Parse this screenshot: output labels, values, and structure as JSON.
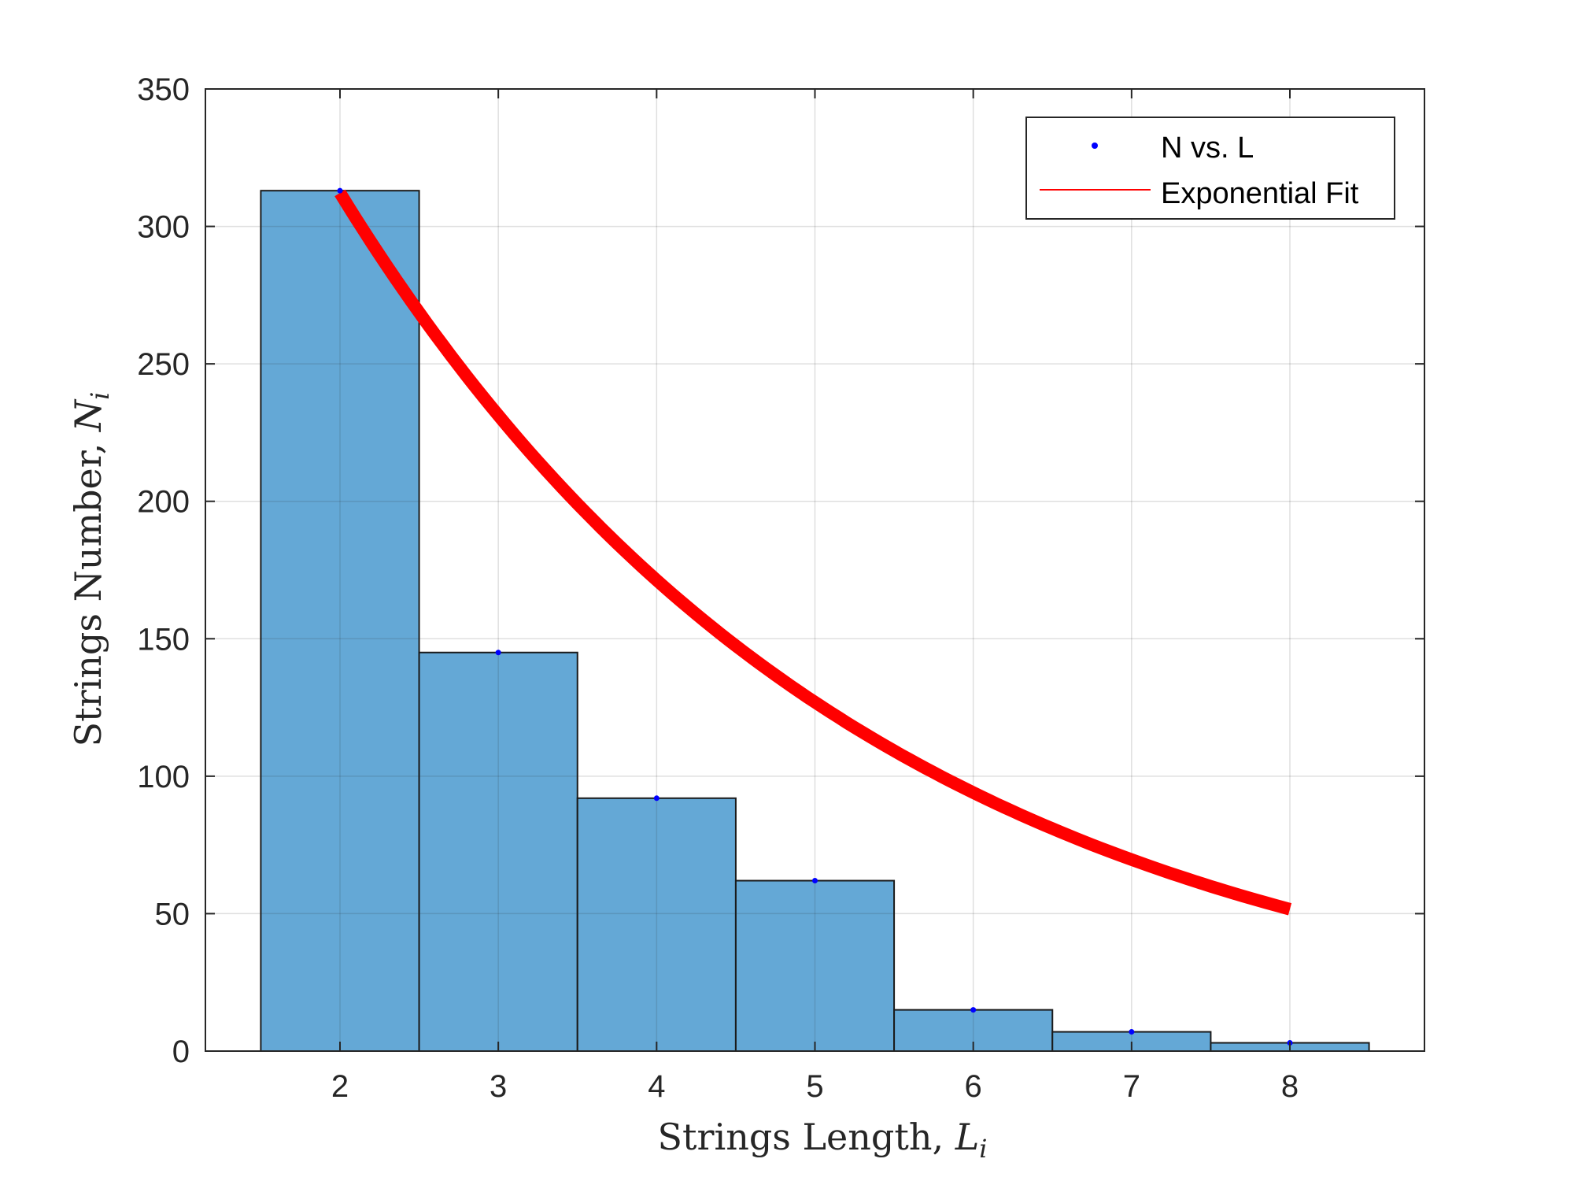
{
  "chart_data": {
    "type": "bar",
    "x": [
      2,
      3,
      4,
      5,
      6,
      7,
      8
    ],
    "categories": [
      "2",
      "3",
      "4",
      "5",
      "6",
      "7",
      "8"
    ],
    "values": [
      313,
      145,
      92,
      62,
      15,
      7,
      3
    ],
    "xlabel": {
      "main": "Strings Length, ",
      "var": "L",
      "sub": "i"
    },
    "ylabel": {
      "main": "Strings Number, ",
      "var": "N",
      "sub": "i"
    },
    "xlim": [
      1.15,
      8.85
    ],
    "ylim": [
      0,
      350
    ],
    "xticks": [
      2,
      3,
      4,
      5,
      6,
      7,
      8
    ],
    "yticks": [
      0,
      50,
      100,
      150,
      200,
      250,
      300,
      350
    ],
    "grid": true,
    "legend_position": "top-right",
    "series": [
      {
        "name": "N vs. L",
        "kind": "markers",
        "color": "#0000ff",
        "x": [
          2,
          3,
          4,
          5,
          6,
          7,
          8
        ],
        "y": [
          313,
          145,
          92,
          62,
          15,
          7,
          3
        ]
      },
      {
        "name": "Exponential Fit",
        "kind": "line",
        "color": "#ff0000",
        "x": [
          2,
          8
        ],
        "fit": {
          "a": 568.84,
          "b": -0.3
        }
      }
    ],
    "colors": {
      "bar_fill": "#64a8d6",
      "bar_edge": "#1a1a1a",
      "fit": "#ff0000",
      "markers": "#0000ff"
    }
  }
}
